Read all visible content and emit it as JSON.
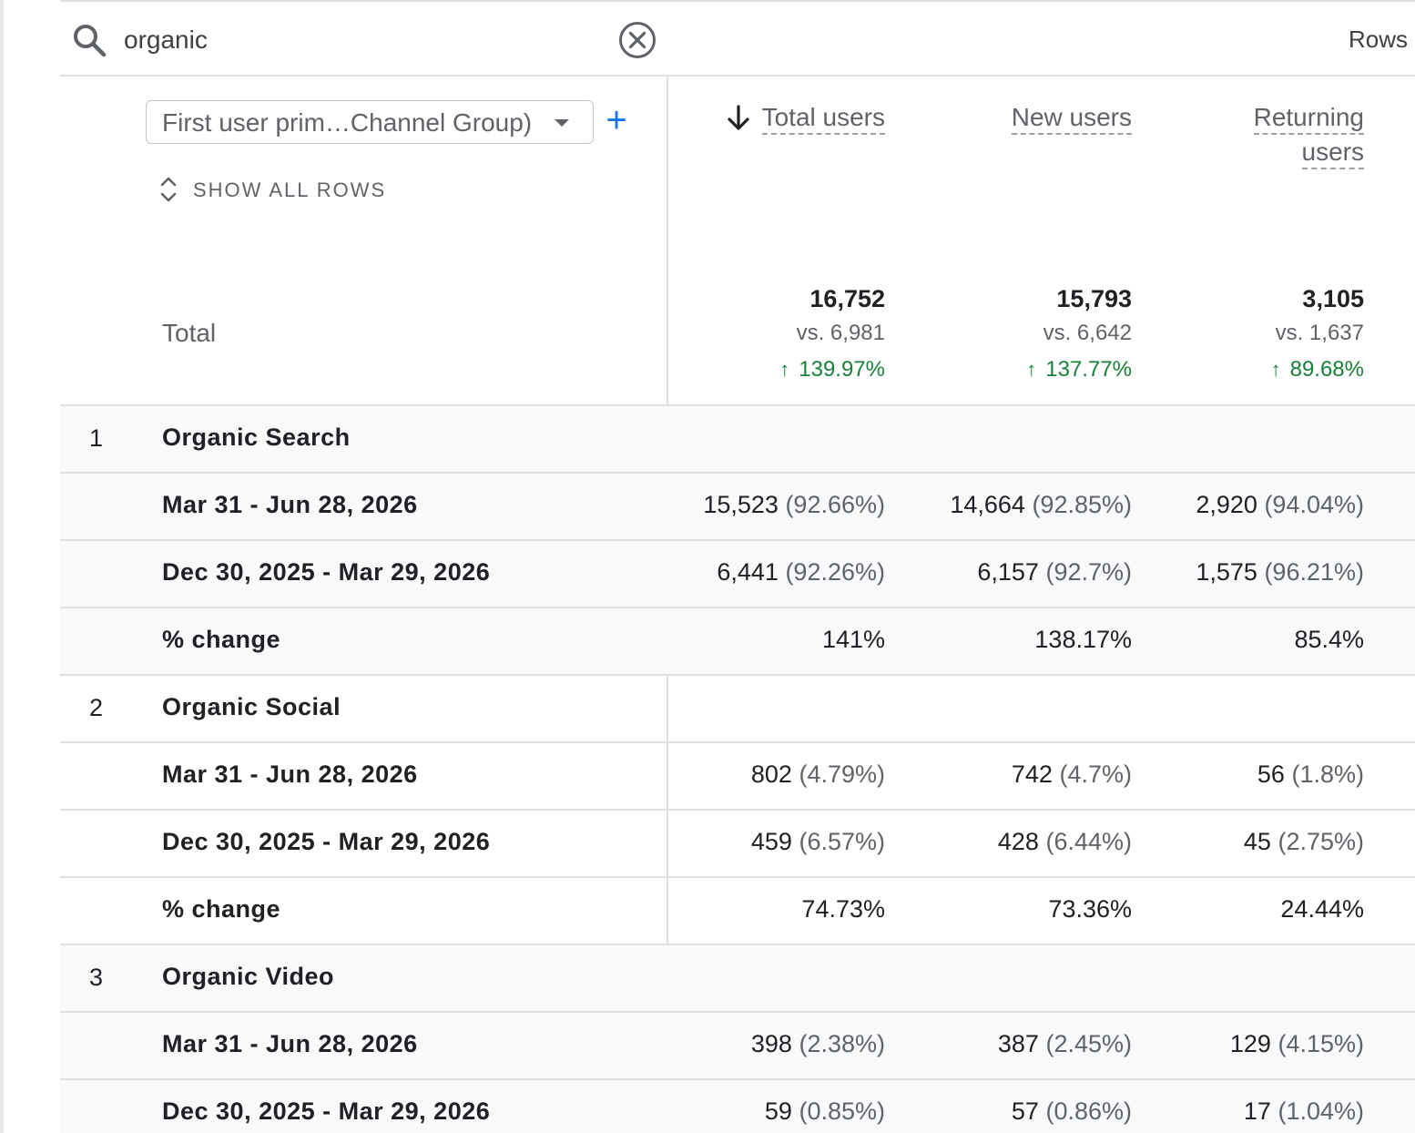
{
  "search": {
    "value": "organic",
    "rows_label": "Rows"
  },
  "dimension": {
    "select_label": "First user prim…Channel Group)",
    "add_label": "+",
    "show_all_rows": "SHOW ALL ROWS"
  },
  "columns": [
    {
      "lines": [
        "Total users"
      ],
      "sorted": true
    },
    {
      "lines": [
        "New users"
      ],
      "sorted": false
    },
    {
      "lines": [
        "Returning",
        "users"
      ],
      "sorted": false
    }
  ],
  "totals": {
    "label": "Total",
    "cells": [
      {
        "value": "16,752",
        "vs": "vs. 6,981",
        "change": "139.97%"
      },
      {
        "value": "15,793",
        "vs": "vs. 6,642",
        "change": "137.77%"
      },
      {
        "value": "3,105",
        "vs": "vs. 1,637",
        "change": "89.68%"
      }
    ]
  },
  "groups": [
    {
      "index": "1",
      "name": "Organic Search",
      "rows": [
        {
          "label": "Mar 31 - Jun 28, 2026",
          "cells": [
            [
              "15,523",
              "(92.66%)"
            ],
            [
              "14,664",
              "(92.85%)"
            ],
            [
              "2,920",
              "(94.04%)"
            ]
          ]
        },
        {
          "label": "Dec 30, 2025 - Mar 29, 2026",
          "cells": [
            [
              "6,441",
              "(92.26%)"
            ],
            [
              "6,157",
              "(92.7%)"
            ],
            [
              "1,575",
              "(96.21%)"
            ]
          ]
        },
        {
          "label": "% change",
          "cells": [
            [
              "141%",
              ""
            ],
            [
              "138.17%",
              ""
            ],
            [
              "85.4%",
              ""
            ]
          ]
        }
      ]
    },
    {
      "index": "2",
      "name": "Organic Social",
      "rows": [
        {
          "label": "Mar 31 - Jun 28, 2026",
          "cells": [
            [
              "802",
              "(4.79%)"
            ],
            [
              "742",
              "(4.7%)"
            ],
            [
              "56",
              "(1.8%)"
            ]
          ]
        },
        {
          "label": "Dec 30, 2025 - Mar 29, 2026",
          "cells": [
            [
              "459",
              "(6.57%)"
            ],
            [
              "428",
              "(6.44%)"
            ],
            [
              "45",
              "(2.75%)"
            ]
          ]
        },
        {
          "label": "% change",
          "cells": [
            [
              "74.73%",
              ""
            ],
            [
              "73.36%",
              ""
            ],
            [
              "24.44%",
              ""
            ]
          ]
        }
      ]
    },
    {
      "index": "3",
      "name": "Organic Video",
      "rows": [
        {
          "label": "Mar 31 - Jun 28, 2026",
          "cells": [
            [
              "398",
              "(2.38%)"
            ],
            [
              "387",
              "(2.45%)"
            ],
            [
              "129",
              "(4.15%)"
            ]
          ]
        },
        {
          "label": "Dec 30, 2025 - Mar 29, 2026",
          "cells": [
            [
              "59",
              "(0.85%)"
            ],
            [
              "57",
              "(0.86%)"
            ],
            [
              "17",
              "(1.04%)"
            ]
          ]
        }
      ]
    }
  ],
  "colors": {
    "positive": "#188038",
    "accent": "#1a73e8",
    "shaded_row": "#f8f9fa"
  }
}
